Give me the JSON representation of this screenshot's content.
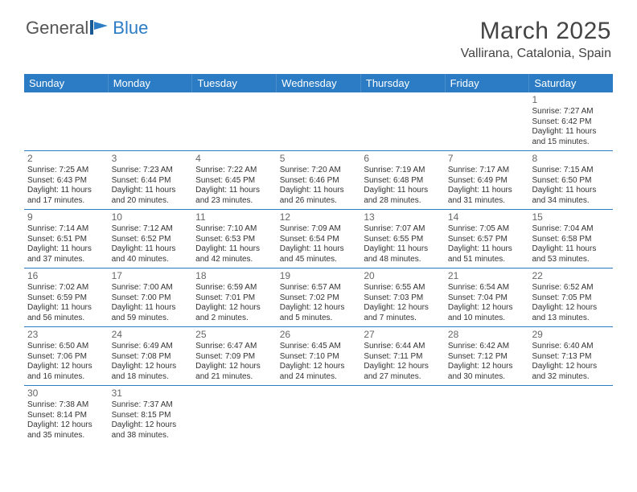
{
  "brand": {
    "text_a": "General",
    "text_b": "Blue",
    "gray_color": "#666666",
    "blue_color": "#2b7cc4"
  },
  "title": "March 2025",
  "location": "Vallirana, Catalonia, Spain",
  "colors": {
    "header_bg": "#2b7cc4",
    "border": "#2b7cc4",
    "text": "#333333"
  },
  "weekdays": [
    "Sunday",
    "Monday",
    "Tuesday",
    "Wednesday",
    "Thursday",
    "Friday",
    "Saturday"
  ],
  "weeks": [
    [
      null,
      null,
      null,
      null,
      null,
      null,
      {
        "n": "1",
        "sr": "Sunrise: 7:27 AM",
        "ss": "Sunset: 6:42 PM",
        "d1": "Daylight: 11 hours",
        "d2": "and 15 minutes."
      }
    ],
    [
      {
        "n": "2",
        "sr": "Sunrise: 7:25 AM",
        "ss": "Sunset: 6:43 PM",
        "d1": "Daylight: 11 hours",
        "d2": "and 17 minutes."
      },
      {
        "n": "3",
        "sr": "Sunrise: 7:23 AM",
        "ss": "Sunset: 6:44 PM",
        "d1": "Daylight: 11 hours",
        "d2": "and 20 minutes."
      },
      {
        "n": "4",
        "sr": "Sunrise: 7:22 AM",
        "ss": "Sunset: 6:45 PM",
        "d1": "Daylight: 11 hours",
        "d2": "and 23 minutes."
      },
      {
        "n": "5",
        "sr": "Sunrise: 7:20 AM",
        "ss": "Sunset: 6:46 PM",
        "d1": "Daylight: 11 hours",
        "d2": "and 26 minutes."
      },
      {
        "n": "6",
        "sr": "Sunrise: 7:19 AM",
        "ss": "Sunset: 6:48 PM",
        "d1": "Daylight: 11 hours",
        "d2": "and 28 minutes."
      },
      {
        "n": "7",
        "sr": "Sunrise: 7:17 AM",
        "ss": "Sunset: 6:49 PM",
        "d1": "Daylight: 11 hours",
        "d2": "and 31 minutes."
      },
      {
        "n": "8",
        "sr": "Sunrise: 7:15 AM",
        "ss": "Sunset: 6:50 PM",
        "d1": "Daylight: 11 hours",
        "d2": "and 34 minutes."
      }
    ],
    [
      {
        "n": "9",
        "sr": "Sunrise: 7:14 AM",
        "ss": "Sunset: 6:51 PM",
        "d1": "Daylight: 11 hours",
        "d2": "and 37 minutes."
      },
      {
        "n": "10",
        "sr": "Sunrise: 7:12 AM",
        "ss": "Sunset: 6:52 PM",
        "d1": "Daylight: 11 hours",
        "d2": "and 40 minutes."
      },
      {
        "n": "11",
        "sr": "Sunrise: 7:10 AM",
        "ss": "Sunset: 6:53 PM",
        "d1": "Daylight: 11 hours",
        "d2": "and 42 minutes."
      },
      {
        "n": "12",
        "sr": "Sunrise: 7:09 AM",
        "ss": "Sunset: 6:54 PM",
        "d1": "Daylight: 11 hours",
        "d2": "and 45 minutes."
      },
      {
        "n": "13",
        "sr": "Sunrise: 7:07 AM",
        "ss": "Sunset: 6:55 PM",
        "d1": "Daylight: 11 hours",
        "d2": "and 48 minutes."
      },
      {
        "n": "14",
        "sr": "Sunrise: 7:05 AM",
        "ss": "Sunset: 6:57 PM",
        "d1": "Daylight: 11 hours",
        "d2": "and 51 minutes."
      },
      {
        "n": "15",
        "sr": "Sunrise: 7:04 AM",
        "ss": "Sunset: 6:58 PM",
        "d1": "Daylight: 11 hours",
        "d2": "and 53 minutes."
      }
    ],
    [
      {
        "n": "16",
        "sr": "Sunrise: 7:02 AM",
        "ss": "Sunset: 6:59 PM",
        "d1": "Daylight: 11 hours",
        "d2": "and 56 minutes."
      },
      {
        "n": "17",
        "sr": "Sunrise: 7:00 AM",
        "ss": "Sunset: 7:00 PM",
        "d1": "Daylight: 11 hours",
        "d2": "and 59 minutes."
      },
      {
        "n": "18",
        "sr": "Sunrise: 6:59 AM",
        "ss": "Sunset: 7:01 PM",
        "d1": "Daylight: 12 hours",
        "d2": "and 2 minutes."
      },
      {
        "n": "19",
        "sr": "Sunrise: 6:57 AM",
        "ss": "Sunset: 7:02 PM",
        "d1": "Daylight: 12 hours",
        "d2": "and 5 minutes."
      },
      {
        "n": "20",
        "sr": "Sunrise: 6:55 AM",
        "ss": "Sunset: 7:03 PM",
        "d1": "Daylight: 12 hours",
        "d2": "and 7 minutes."
      },
      {
        "n": "21",
        "sr": "Sunrise: 6:54 AM",
        "ss": "Sunset: 7:04 PM",
        "d1": "Daylight: 12 hours",
        "d2": "and 10 minutes."
      },
      {
        "n": "22",
        "sr": "Sunrise: 6:52 AM",
        "ss": "Sunset: 7:05 PM",
        "d1": "Daylight: 12 hours",
        "d2": "and 13 minutes."
      }
    ],
    [
      {
        "n": "23",
        "sr": "Sunrise: 6:50 AM",
        "ss": "Sunset: 7:06 PM",
        "d1": "Daylight: 12 hours",
        "d2": "and 16 minutes."
      },
      {
        "n": "24",
        "sr": "Sunrise: 6:49 AM",
        "ss": "Sunset: 7:08 PM",
        "d1": "Daylight: 12 hours",
        "d2": "and 18 minutes."
      },
      {
        "n": "25",
        "sr": "Sunrise: 6:47 AM",
        "ss": "Sunset: 7:09 PM",
        "d1": "Daylight: 12 hours",
        "d2": "and 21 minutes."
      },
      {
        "n": "26",
        "sr": "Sunrise: 6:45 AM",
        "ss": "Sunset: 7:10 PM",
        "d1": "Daylight: 12 hours",
        "d2": "and 24 minutes."
      },
      {
        "n": "27",
        "sr": "Sunrise: 6:44 AM",
        "ss": "Sunset: 7:11 PM",
        "d1": "Daylight: 12 hours",
        "d2": "and 27 minutes."
      },
      {
        "n": "28",
        "sr": "Sunrise: 6:42 AM",
        "ss": "Sunset: 7:12 PM",
        "d1": "Daylight: 12 hours",
        "d2": "and 30 minutes."
      },
      {
        "n": "29",
        "sr": "Sunrise: 6:40 AM",
        "ss": "Sunset: 7:13 PM",
        "d1": "Daylight: 12 hours",
        "d2": "and 32 minutes."
      }
    ],
    [
      {
        "n": "30",
        "sr": "Sunrise: 7:38 AM",
        "ss": "Sunset: 8:14 PM",
        "d1": "Daylight: 12 hours",
        "d2": "and 35 minutes."
      },
      {
        "n": "31",
        "sr": "Sunrise: 7:37 AM",
        "ss": "Sunset: 8:15 PM",
        "d1": "Daylight: 12 hours",
        "d2": "and 38 minutes."
      },
      null,
      null,
      null,
      null,
      null
    ]
  ]
}
